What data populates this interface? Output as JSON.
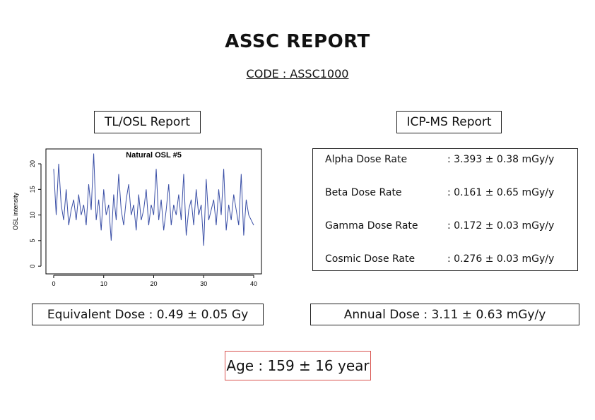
{
  "header": {
    "title": "ASSC REPORT",
    "code": "CODE : ASSC1000"
  },
  "tl_osl": {
    "heading": "TL/OSL Report",
    "equivalent_dose": "Equivalent Dose : 0.49 ± 0.05 Gy"
  },
  "icp_ms": {
    "heading": "ICP-MS Report",
    "rows": [
      [
        "Alpha Dose Rate",
        ": 3.393 ± 0.38 mGy/y"
      ],
      [
        "Beta Dose Rate",
        ": 0.161 ± 0.65 mGy/y"
      ],
      [
        "Gamma Dose Rate",
        ": 0.172 ± 0.03 mGy/y"
      ],
      [
        "Cosmic Dose Rate",
        ": 0.276 ± 0.03 mGy/y"
      ]
    ],
    "annual_dose": "Annual Dose : 3.11 ± 0.63 mGy/y"
  },
  "age": "Age : 159 ± 16 year",
  "chart_data": {
    "type": "line",
    "title": "Natural OSL #5",
    "y_label": "OSL intensity",
    "color": "#3a4fa6",
    "x": [
      0,
      0.5,
      1,
      1.5,
      2,
      2.5,
      3,
      3.5,
      4,
      4.5,
      5,
      5.5,
      6,
      6.5,
      7,
      7.5,
      8,
      8.5,
      9,
      9.5,
      10,
      10.5,
      11,
      11.5,
      12,
      12.5,
      13,
      13.5,
      14,
      14.5,
      15,
      15.5,
      16,
      16.5,
      17,
      17.5,
      18,
      18.5,
      19,
      19.5,
      20,
      20.5,
      21,
      21.5,
      22,
      22.5,
      23,
      23.5,
      24,
      24.5,
      25,
      25.5,
      26,
      26.5,
      27,
      27.5,
      28,
      28.5,
      29,
      29.5,
      30,
      30.5,
      31,
      31.5,
      32,
      32.5,
      33,
      33.5,
      34,
      34.5,
      35,
      35.5,
      36,
      36.5,
      37,
      37.5,
      38,
      38.5,
      39,
      39.5,
      40
    ],
    "values": [
      19,
      10,
      20,
      12,
      9,
      15,
      8,
      11,
      13,
      9,
      14,
      10,
      12,
      8,
      16,
      11,
      22,
      9,
      13,
      7,
      15,
      10,
      12,
      5,
      14,
      9,
      18,
      11,
      8,
      13,
      16,
      10,
      12,
      7,
      14,
      9,
      11,
      15,
      8,
      12,
      10,
      19,
      9,
      13,
      7,
      11,
      16,
      8,
      12,
      10,
      14,
      9,
      18,
      6,
      11,
      13,
      8,
      15,
      10,
      12,
      4,
      17,
      9,
      11,
      13,
      8,
      15,
      10,
      19,
      7,
      12,
      9,
      14,
      11,
      8,
      18,
      6,
      13,
      10,
      9,
      8
    ],
    "xlim": [
      -1.55,
      41.55
    ],
    "ylim": [
      -1.5,
      22.9
    ],
    "xticks": [
      0,
      10,
      20,
      30,
      40
    ],
    "yticks": [
      0,
      5,
      10,
      15,
      20
    ]
  }
}
